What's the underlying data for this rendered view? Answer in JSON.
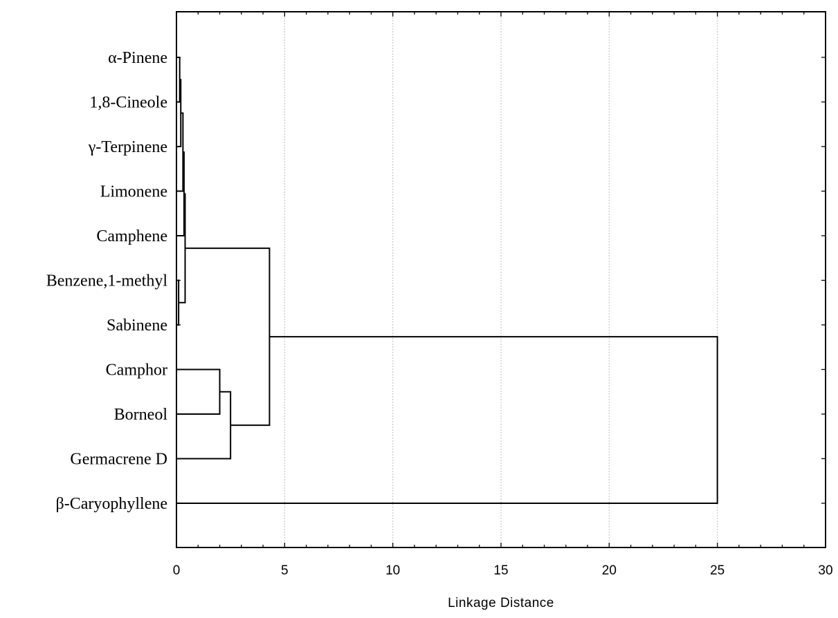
{
  "chart_data": {
    "type": "dendrogram",
    "orientation": "horizontal",
    "xlabel": "Linkage Distance",
    "xlim": [
      0,
      30
    ],
    "x_ticks": [
      0,
      5,
      10,
      15,
      20,
      25,
      30
    ],
    "grid": "vertical dotted at major ticks",
    "leaves": [
      "α-Pinene",
      "1,8-Cineole",
      "γ-Terpinene",
      "Limonene",
      "Camphene",
      "Benzene,1-methyl",
      "Sabinene",
      "Camphor",
      "Borneol",
      "Germacrene D",
      "β-Caryophyllene"
    ],
    "merges": [
      {
        "a": "Benzene,1-methyl",
        "b": "Sabinene",
        "distance": 0.1
      },
      {
        "a": "α-Pinene",
        "b": "1,8-Cineole",
        "distance": 0.15
      },
      {
        "a": "m2",
        "b": "γ-Terpinene",
        "distance": 0.2
      },
      {
        "a": "m3",
        "b": "Limonene",
        "distance": 0.3
      },
      {
        "a": "m4",
        "b": "Camphene",
        "distance": 0.35
      },
      {
        "a": "m5",
        "b": "m1",
        "distance": 0.4
      },
      {
        "a": "Camphor",
        "b": "Borneol",
        "distance": 2.0
      },
      {
        "a": "m7",
        "b": "Germacrene D",
        "distance": 2.5
      },
      {
        "a": "m6",
        "b": "m8",
        "distance": 4.3
      },
      {
        "a": "m9",
        "b": "β-Caryophyllene",
        "distance": 25.0
      }
    ]
  }
}
